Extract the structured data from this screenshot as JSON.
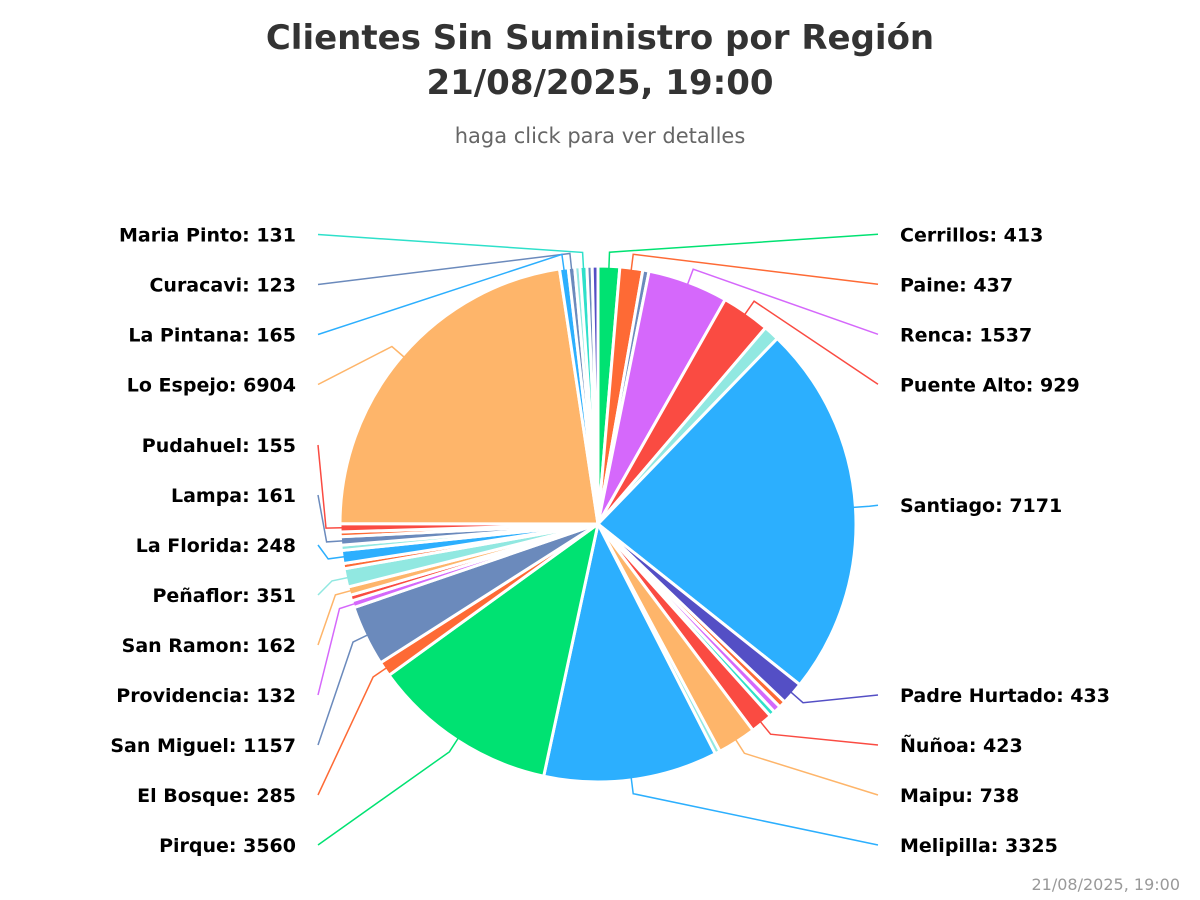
{
  "chart": {
    "title_line1": "Clientes Sin Suministro por Región",
    "title_line2": "21/08/2025, 19:00",
    "subtitle": "haga click para ver detalles",
    "timestamp": "21/08/2025, 19:00"
  },
  "chart_data": {
    "type": "pie",
    "title": "Clientes Sin Suministro por Región 21/08/2025, 19:00",
    "subtitle": "haga click para ver detalles",
    "start_angle_deg": 0,
    "slices": [
      {
        "name": "Cerrillos",
        "value": 413,
        "color": "#00e272"
      },
      {
        "name": "Paine",
        "value": 437,
        "color": "#fe6a35"
      },
      {
        "name": "",
        "value": 120,
        "color": "#6b8abc"
      },
      {
        "name": "Renca",
        "value": 1537,
        "color": "#d568fb"
      },
      {
        "name": "Puente Alto",
        "value": 929,
        "color": "#fa4b42"
      },
      {
        "name": "",
        "value": 300,
        "color": "#91e8e1"
      },
      {
        "name": "Santiago",
        "value": 7171,
        "color": "#2caffe"
      },
      {
        "name": "Padre Hurtado",
        "value": 433,
        "color": "#544fc5"
      },
      {
        "name": "",
        "value": 130,
        "color": "#fe6a35"
      },
      {
        "name": "",
        "value": 140,
        "color": "#d568fb"
      },
      {
        "name": "",
        "value": 110,
        "color": "#2ee0ca"
      },
      {
        "name": "Ñuñoa",
        "value": 423,
        "color": "#fa4b42"
      },
      {
        "name": "Maipu",
        "value": 738,
        "color": "#feb56a"
      },
      {
        "name": "",
        "value": 100,
        "color": "#91e8e1"
      },
      {
        "name": "Melipilla",
        "value": 3325,
        "color": "#2caffe"
      },
      {
        "name": "Pirque",
        "value": 3560,
        "color": "#00e272"
      },
      {
        "name": "El Bosque",
        "value": 285,
        "color": "#fe6a35"
      },
      {
        "name": "San Miguel",
        "value": 1157,
        "color": "#6b8abc"
      },
      {
        "name": "Providencia",
        "value": 132,
        "color": "#d568fb"
      },
      {
        "name": "",
        "value": 110,
        "color": "#fa4b42"
      },
      {
        "name": "San Ramon",
        "value": 162,
        "color": "#feb56a"
      },
      {
        "name": "Peñaflor",
        "value": 351,
        "color": "#91e8e1"
      },
      {
        "name": "",
        "value": 100,
        "color": "#fe6a35"
      },
      {
        "name": "La Florida",
        "value": 248,
        "color": "#2caffe"
      },
      {
        "name": "",
        "value": 100,
        "color": "#91e8e1"
      },
      {
        "name": "Lampa",
        "value": 161,
        "color": "#6b8abc"
      },
      {
        "name": "",
        "value": 90,
        "color": "#fe6a35"
      },
      {
        "name": "Pudahuel",
        "value": 155,
        "color": "#fa4b42"
      },
      {
        "name": "Lo Espejo",
        "value": 6904,
        "color": "#feb56a"
      },
      {
        "name": "La Pintana",
        "value": 165,
        "color": "#2caffe"
      },
      {
        "name": "Curacavi",
        "value": 123,
        "color": "#6b8abc"
      },
      {
        "name": "",
        "value": 100,
        "color": "#91e8e1"
      },
      {
        "name": "Maria Pinto",
        "value": 131,
        "color": "#2ee0ca"
      },
      {
        "name": "",
        "value": 100,
        "color": "#6b8abc"
      },
      {
        "name": "",
        "value": 110,
        "color": "#544fc5"
      }
    ]
  }
}
